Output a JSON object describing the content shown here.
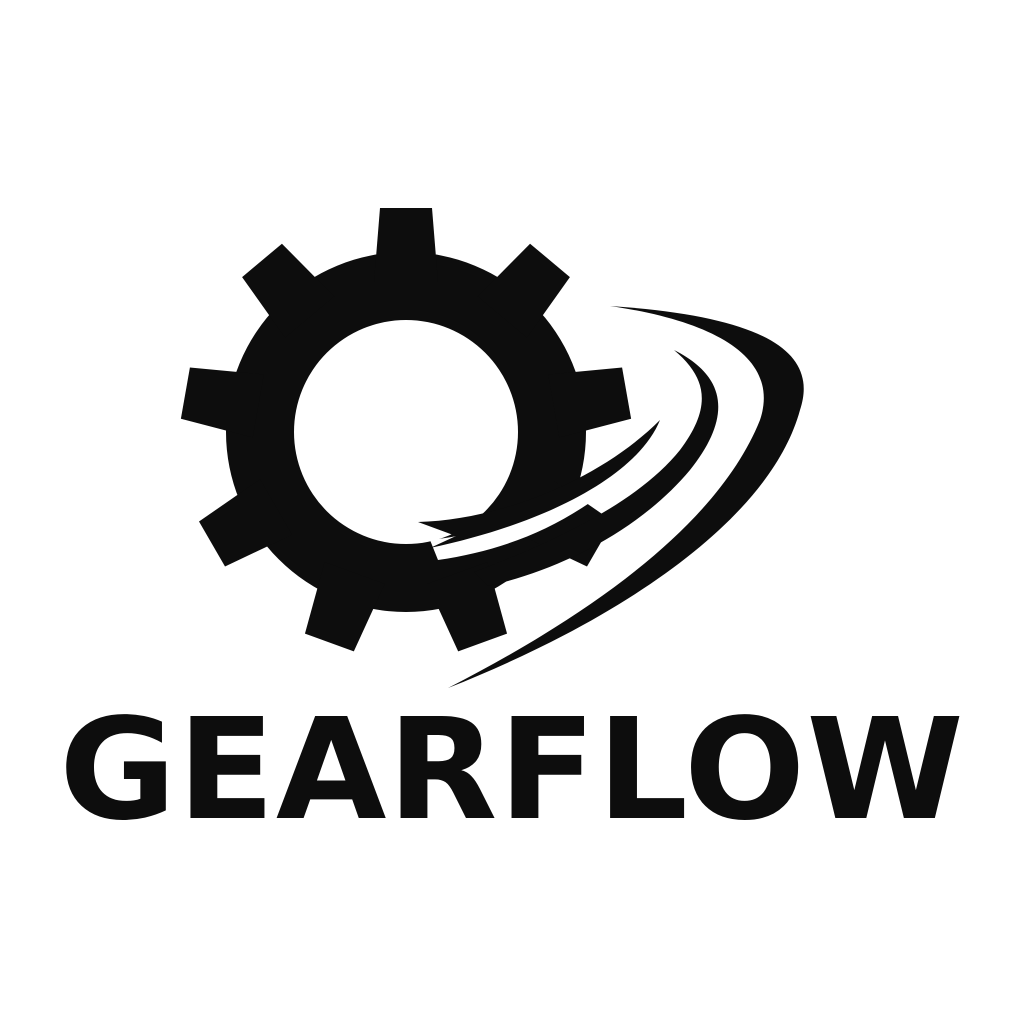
{
  "brand": {
    "name": "GEARFLOW",
    "color": "#0d0d0d",
    "background": "#ffffff"
  },
  "icons": {
    "gear": "gear-icon",
    "swoosh": "motion-swoosh-icon"
  }
}
